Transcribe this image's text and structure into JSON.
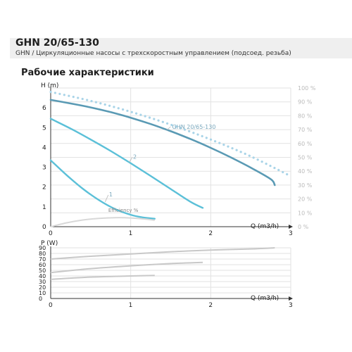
{
  "header": {
    "title": "GHN 20/65-130",
    "subtitle": "GHN / Циркуляционные насосы с трехскоростным управлением (подсоед. резьба)",
    "section_title": "Рабочие характеристики"
  },
  "colors": {
    "header_band": "#efefef",
    "curve_speed1": "#5bc0d8",
    "curve_speed2": "#5bc0d8",
    "curve_speed3": "#5a9ab4",
    "efficiency_dotted": "#a9d4e8",
    "efficiency_curve": "#d8d8d8",
    "power_curves": "#c8c8c8",
    "grid": "#e2e2e2"
  },
  "chart_data": [
    {
      "type": "line",
      "xlabel": "Q (m3/h)",
      "ylabel": "H (m)",
      "y2label": "",
      "xlim": [
        0,
        3
      ],
      "ylim": [
        0,
        7
      ],
      "y2lim": [
        0,
        100
      ],
      "xticks": [
        "0",
        "1",
        "2",
        "3"
      ],
      "yticks": [
        "0",
        "1",
        "2",
        "3",
        "4",
        "5",
        "6"
      ],
      "y2ticks": [
        "0 %",
        "10 %",
        "20 %",
        "30 %",
        "40 %",
        "50 %",
        "60 %",
        "70 %",
        "80 %",
        "90 %",
        "100 %"
      ],
      "grid": true,
      "series": [
        {
          "name": "GHN 20/65-130",
          "axis": "left",
          "style": "solid",
          "x": [
            0,
            0.25,
            0.5,
            0.75,
            1,
            1.25,
            1.5,
            1.75,
            2,
            2.25,
            2.5,
            2.75,
            2.8
          ],
          "y": [
            6.4,
            6.22,
            6.02,
            5.78,
            5.5,
            5.18,
            4.82,
            4.42,
            3.98,
            3.5,
            2.98,
            2.4,
            2.1
          ]
        },
        {
          "name": "2",
          "axis": "left",
          "style": "solid",
          "x": [
            0,
            0.25,
            0.5,
            0.75,
            1,
            1.25,
            1.5,
            1.75,
            1.9
          ],
          "y": [
            5.45,
            4.95,
            4.4,
            3.82,
            3.2,
            2.56,
            1.9,
            1.25,
            0.95
          ]
        },
        {
          "name": "1",
          "axis": "left",
          "style": "solid",
          "x": [
            0,
            0.2,
            0.4,
            0.6,
            0.8,
            1,
            1.15,
            1.3
          ],
          "y": [
            3.35,
            2.6,
            1.92,
            1.35,
            0.9,
            0.6,
            0.47,
            0.4
          ]
        },
        {
          "name": "",
          "axis": "left",
          "style": "dotted",
          "x": [
            0,
            0.5,
            1,
            1.5,
            2,
            2.5,
            3
          ],
          "y": [
            6.8,
            6.35,
            5.8,
            5.15,
            4.4,
            3.55,
            2.55
          ]
        },
        {
          "name": "Efficiency",
          "axis": "right",
          "style": "solid",
          "x": [
            0,
            0.2,
            0.4,
            0.6,
            0.8,
            1,
            1.2,
            1.3
          ],
          "y": [
            0,
            2.8,
            4.8,
            6,
            6.5,
            6.3,
            5.4,
            4.6
          ]
        }
      ]
    },
    {
      "type": "line",
      "xlabel": "Q (m3/h)",
      "ylabel": "P (W)",
      "xlim": [
        0,
        3
      ],
      "ylim": [
        0,
        90
      ],
      "xticks": [
        "0",
        "1",
        "2",
        "3"
      ],
      "yticks": [
        "0",
        "10",
        "20",
        "30",
        "40",
        "50",
        "60",
        "70",
        "80",
        "90"
      ],
      "grid": true,
      "series": [
        {
          "name": "",
          "x": [
            0,
            0.5,
            1,
            1.5,
            2,
            2.5,
            2.8
          ],
          "y": [
            70,
            75,
            79,
            83,
            86,
            88,
            90
          ]
        },
        {
          "name": "",
          "x": [
            0,
            0.5,
            1,
            1.5,
            1.9
          ],
          "y": [
            46,
            53,
            58,
            62,
            64
          ]
        },
        {
          "name": "",
          "x": [
            0,
            0.5,
            1,
            1.3
          ],
          "y": [
            34,
            38,
            40,
            41
          ]
        }
      ]
    }
  ]
}
